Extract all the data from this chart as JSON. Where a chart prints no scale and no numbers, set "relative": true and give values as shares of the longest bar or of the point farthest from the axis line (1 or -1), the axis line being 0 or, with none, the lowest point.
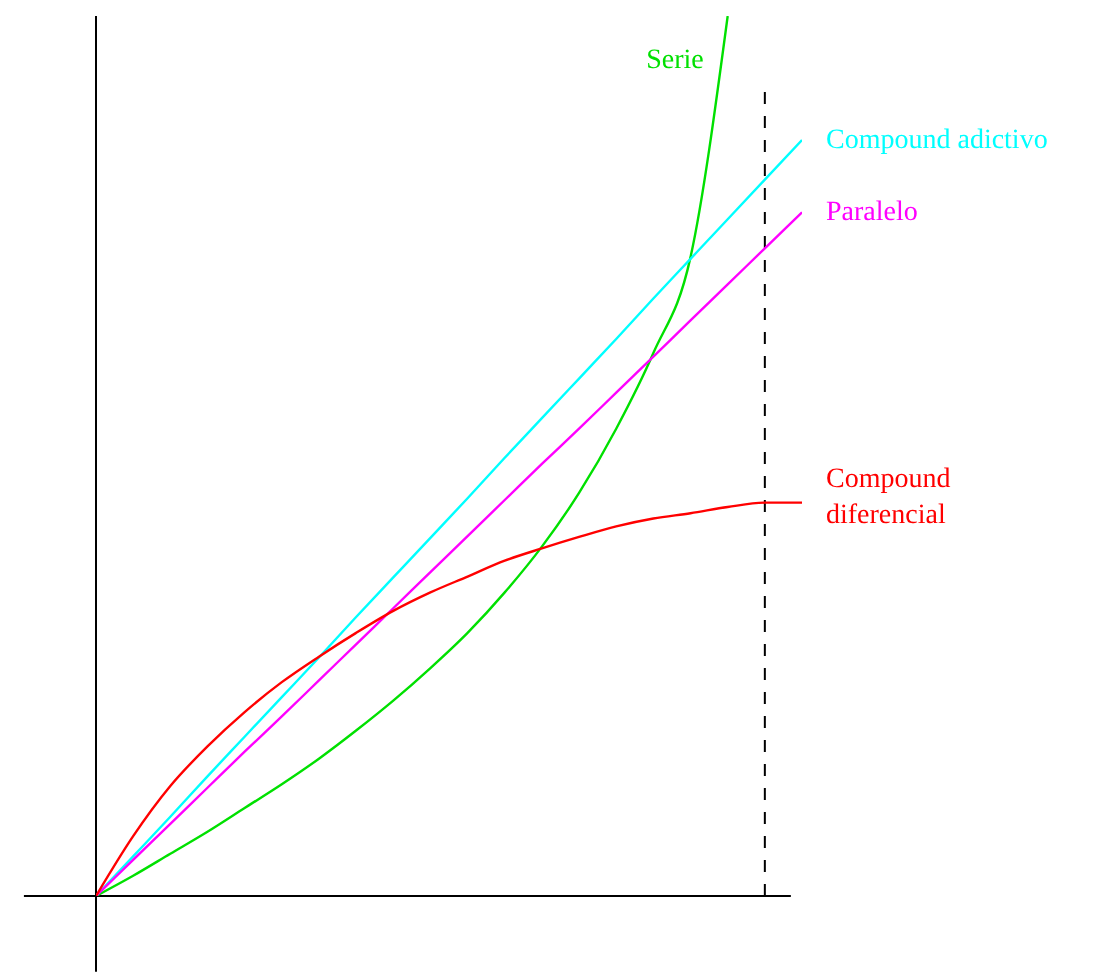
{
  "chart_data": {
    "type": "line",
    "relative": true,
    "marker": "none",
    "line_style": "solid",
    "categories": [
      null,
      null,
      null,
      null,
      null,
      null,
      null,
      null,
      null,
      null,
      null,
      null,
      null,
      null,
      null,
      null,
      null,
      null,
      null,
      null
    ],
    "series": [
      {
        "name": "Serie",
        "color": "#00e000",
        "values": [
          0,
          0.023,
          0.048,
          0.073,
          0.1,
          0.127,
          0.156,
          0.188,
          0.222,
          0.259,
          0.299,
          0.345,
          0.397,
          0.458,
          0.531,
          0.617,
          0.726,
          1,
          null,
          null
        ]
      },
      {
        "name": "Compound adictivo",
        "color": "#00ffff",
        "values": [
          0,
          0.045,
          0.09,
          0.136,
          0.181,
          0.226,
          0.271,
          0.317,
          0.362,
          0.407,
          0.452,
          0.498,
          0.543,
          0.588,
          0.633,
          0.679,
          0.724,
          0.769,
          0.814,
          0.859
        ]
      },
      {
        "name": "Paralelo",
        "color": "#ff00ff",
        "values": [
          0,
          0.041,
          0.082,
          0.123,
          0.164,
          0.204,
          0.245,
          0.286,
          0.327,
          0.368,
          0.409,
          0.45,
          0.491,
          0.531,
          0.572,
          0.613,
          0.654,
          0.695,
          0.736,
          0.777
        ]
      },
      {
        "name": "Compound diferencial",
        "color": "#ff0000",
        "values": [
          0,
          0.068,
          0.125,
          0.17,
          0.209,
          0.243,
          0.272,
          0.299,
          0.324,
          0.345,
          0.363,
          0.381,
          0.395,
          0.408,
          0.42,
          0.429,
          0.435,
          0.442,
          0.447,
          0.447
        ]
      }
    ]
  }
}
